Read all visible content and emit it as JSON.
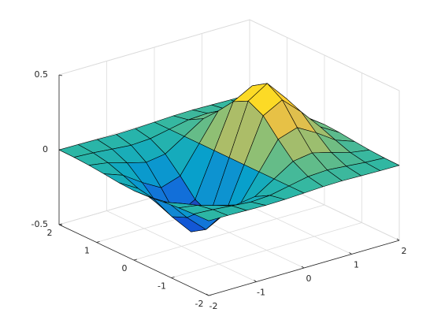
{
  "chart_data": {
    "type": "surface",
    "x": [
      -2,
      -1.6,
      -1.2,
      -0.8,
      -0.4,
      0,
      0.4,
      0.8,
      1.2,
      1.6,
      2
    ],
    "y": [
      -2,
      -1.6,
      -1.2,
      -0.8,
      -0.4,
      0,
      0.4,
      0.8,
      1.2,
      1.6,
      2
    ],
    "z": [
      [
        -0.001,
        -0.002,
        -0.005,
        -0.008,
        -0.006,
        0,
        0.006,
        0.008,
        0.005,
        0.002,
        0.001
      ],
      [
        -0.003,
        -0.01,
        -0.022,
        -0.033,
        -0.026,
        0,
        0.026,
        0.033,
        0.022,
        0.01,
        0.003
      ],
      [
        -0.009,
        -0.029,
        -0.067,
        -0.1,
        -0.081,
        0,
        0.081,
        0.1,
        0.067,
        0.029,
        0.009
      ],
      [
        -0.019,
        -0.065,
        -0.15,
        -0.222,
        -0.18,
        0,
        0.18,
        0.222,
        0.15,
        0.065,
        0.019
      ],
      [
        -0.031,
        -0.105,
        -0.242,
        -0.359,
        -0.29,
        0,
        0.29,
        0.359,
        0.242,
        0.105,
        0.031
      ],
      [
        -0.037,
        -0.124,
        -0.284,
        -0.422,
        -0.341,
        0,
        0.341,
        0.422,
        0.284,
        0.124,
        0.037
      ],
      [
        -0.031,
        -0.105,
        -0.242,
        -0.359,
        -0.29,
        0,
        0.29,
        0.359,
        0.242,
        0.105,
        0.031
      ],
      [
        -0.019,
        -0.065,
        -0.15,
        -0.222,
        -0.18,
        0,
        0.18,
        0.222,
        0.15,
        0.065,
        0.019
      ],
      [
        -0.009,
        -0.029,
        -0.067,
        -0.1,
        -0.081,
        0,
        0.081,
        0.1,
        0.067,
        0.029,
        0.009
      ],
      [
        -0.003,
        -0.01,
        -0.022,
        -0.033,
        -0.026,
        0,
        0.026,
        0.033,
        0.022,
        0.01,
        0.003
      ],
      [
        -0.001,
        -0.002,
        -0.005,
        -0.008,
        -0.006,
        0,
        0.006,
        0.008,
        0.005,
        0.002,
        0.001
      ]
    ],
    "colormap": [
      "#352a87",
      "#0f5cdd",
      "#1481d6",
      "#06a4ca",
      "#2eb7a4",
      "#87bf77",
      "#d1bb59",
      "#fec832",
      "#f9fb0e"
    ],
    "xlim": [
      -2,
      2
    ],
    "ylim": [
      -2,
      2
    ],
    "zlim": [
      -0.5,
      0.5
    ],
    "xticks": [
      -2,
      -1,
      0,
      1,
      2
    ],
    "yticks": [
      -2,
      -1,
      0,
      1,
      2
    ],
    "zticks": [
      -0.5,
      0,
      0.5
    ],
    "grid": true
  }
}
